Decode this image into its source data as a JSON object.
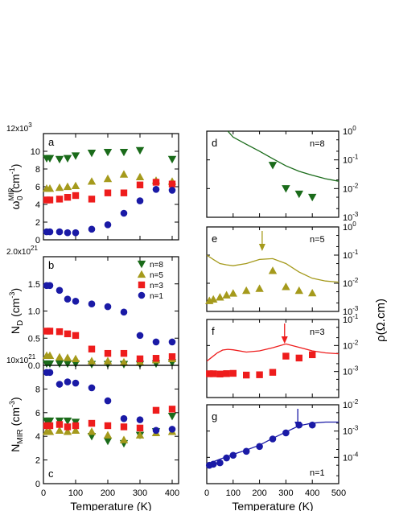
{
  "chart_data": [
    {
      "id": "a",
      "type": "scatter",
      "panel_label": "a",
      "ylabel_main": "ω",
      "ylabel_sub": "0",
      "ylabel_sup": "MIR",
      "ylabel_unit": " (cm",
      "ylabel_unit_sup": "-1",
      "ylabel_close": ")",
      "multiplier_base": "12x10",
      "multiplier_exp": "3",
      "xlim": [
        0,
        420
      ],
      "ylim": [
        0,
        12
      ],
      "yticks": [
        "0",
        "2",
        "4",
        "6",
        "8",
        "10"
      ],
      "ytick_values": [
        0,
        2,
        4,
        6,
        8,
        10
      ],
      "xticks": [
        0,
        100,
        200,
        300,
        400
      ],
      "series": [
        {
          "name": "n=8",
          "color": "#1a6b1a",
          "marker": "tri-down",
          "x": [
            10,
            20,
            50,
            75,
            100,
            150,
            200,
            250,
            300,
            400
          ],
          "y": [
            9.2,
            9.2,
            9.1,
            9.2,
            9.5,
            9.8,
            9.9,
            9.9,
            10.1,
            9.1
          ]
        },
        {
          "name": "n=5",
          "color": "#a59a1c",
          "marker": "tri-up",
          "x": [
            10,
            20,
            50,
            75,
            100,
            150,
            200,
            250,
            300,
            350,
            400
          ],
          "y": [
            5.8,
            5.8,
            5.9,
            6.0,
            6.1,
            6.6,
            6.9,
            7.4,
            7.1,
            6.7,
            6.6
          ]
        },
        {
          "name": "n=3",
          "color": "#ee1c1c",
          "marker": "square",
          "x": [
            10,
            20,
            50,
            75,
            100,
            150,
            200,
            250,
            300,
            350,
            400
          ],
          "y": [
            4.5,
            4.5,
            4.6,
            4.8,
            5.0,
            4.6,
            5.3,
            5.3,
            6.2,
            6.5,
            6.3
          ]
        },
        {
          "name": "n=1",
          "color": "#1a1aa6",
          "marker": "circle",
          "x": [
            10,
            20,
            50,
            75,
            100,
            150,
            200,
            250,
            300,
            350,
            400
          ],
          "y": [
            0.9,
            0.9,
            0.9,
            0.8,
            0.8,
            1.2,
            1.7,
            3.0,
            4.4,
            5.7,
            5.6
          ]
        }
      ]
    },
    {
      "id": "b",
      "type": "scatter",
      "panel_label": "b",
      "ylabel_main": "N",
      "ylabel_sub": "D",
      "ylabel_unit": " (cm",
      "ylabel_unit_sup": "-3",
      "ylabel_close": ")",
      "multiplier_base": "2.0x10",
      "multiplier_exp": "21",
      "xlim": [
        0,
        420
      ],
      "ylim": [
        0,
        2.0
      ],
      "yticks": [
        "0.0",
        "0.5",
        "1.0",
        "1.5"
      ],
      "ytick_values": [
        0,
        0.5,
        1.0,
        1.5
      ],
      "xticks": [
        0,
        100,
        200,
        300,
        400
      ],
      "legend": [
        "n=8",
        "n=5",
        "n=3",
        "n=1"
      ],
      "legend_position": "top-right",
      "series": [
        {
          "name": "n=8",
          "color": "#1a6b1a",
          "marker": "tri-down",
          "x": [
            10,
            20,
            50,
            75,
            100,
            150,
            200,
            250,
            300,
            350,
            400
          ],
          "y": [
            0.03,
            0.03,
            0.03,
            0.03,
            0.03,
            0.02,
            0.02,
            0.02,
            0.02,
            0.03,
            0.05
          ]
        },
        {
          "name": "n=5",
          "color": "#a59a1c",
          "marker": "tri-up",
          "x": [
            10,
            20,
            50,
            75,
            100,
            150,
            200,
            250,
            300,
            350,
            400
          ],
          "y": [
            0.18,
            0.18,
            0.15,
            0.14,
            0.12,
            0.08,
            0.08,
            0.06,
            0.06,
            0.1,
            0.12
          ]
        },
        {
          "name": "n=3",
          "color": "#ee1c1c",
          "marker": "square",
          "x": [
            10,
            20,
            50,
            75,
            100,
            150,
            200,
            250,
            300,
            350,
            400
          ],
          "y": [
            0.63,
            0.63,
            0.62,
            0.58,
            0.55,
            0.3,
            0.22,
            0.22,
            0.12,
            0.13,
            0.16
          ]
        },
        {
          "name": "n=1",
          "color": "#1a1aa6",
          "marker": "circle",
          "x": [
            10,
            20,
            50,
            75,
            100,
            150,
            200,
            250,
            300,
            350,
            400
          ],
          "y": [
            1.47,
            1.47,
            1.38,
            1.22,
            1.18,
            1.13,
            1.08,
            0.98,
            0.55,
            0.43,
            0.43
          ]
        }
      ]
    },
    {
      "id": "c",
      "type": "scatter",
      "panel_label": "c",
      "ylabel_main": "N",
      "ylabel_sub": "MIR",
      "ylabel_unit": " (cm",
      "ylabel_unit_sup": "-3",
      "ylabel_close": ")",
      "multiplier_base": "10x10",
      "multiplier_exp": "21",
      "xlim": [
        0,
        420
      ],
      "ylim": [
        0,
        10
      ],
      "yticks": [
        "0",
        "2",
        "4",
        "6",
        "8"
      ],
      "ytick_values": [
        0,
        2,
        4,
        6,
        8
      ],
      "xticks": [
        "0",
        "100",
        "200",
        "300",
        "400"
      ],
      "xtick_values": [
        0,
        100,
        200,
        300,
        400
      ],
      "xlabel": "Temperature (K)",
      "series": [
        {
          "name": "n=8",
          "color": "#1a6b1a",
          "marker": "tri-down",
          "x": [
            10,
            20,
            50,
            75,
            100,
            150,
            200,
            250,
            300,
            350,
            400
          ],
          "y": [
            5.3,
            5.3,
            5.3,
            5.3,
            5.2,
            4.0,
            3.6,
            3.4,
            4.1,
            4.4,
            5.7
          ]
        },
        {
          "name": "n=5",
          "color": "#a59a1c",
          "marker": "tri-up",
          "x": [
            10,
            20,
            50,
            75,
            100,
            150,
            200,
            250,
            300,
            350,
            400
          ],
          "y": [
            4.4,
            4.4,
            4.5,
            4.4,
            4.5,
            4.4,
            4.1,
            3.7,
            4.1,
            4.3,
            4.4
          ]
        },
        {
          "name": "n=3",
          "color": "#ee1c1c",
          "marker": "square",
          "x": [
            10,
            20,
            50,
            75,
            100,
            150,
            200,
            250,
            300,
            350,
            400
          ],
          "y": [
            4.9,
            4.9,
            5.0,
            4.8,
            4.9,
            5.1,
            4.9,
            4.8,
            4.7,
            6.2,
            6.3
          ]
        },
        {
          "name": "n=1",
          "color": "#1a1aa6",
          "marker": "circle",
          "x": [
            10,
            20,
            50,
            75,
            100,
            150,
            200,
            250,
            300,
            350,
            400
          ],
          "y": [
            9.4,
            9.4,
            8.4,
            8.6,
            8.5,
            8.1,
            7.0,
            5.5,
            5.4,
            4.5,
            4.6
          ]
        }
      ]
    },
    {
      "id": "d",
      "type": "line+scatter",
      "panel_label": "d",
      "n_label": "n=8",
      "color": "#1a6b1a",
      "xlim": [
        0,
        500
      ],
      "yscale": "log",
      "ylim": [
        0.001,
        1
      ],
      "ytick_exps": [
        "0",
        "-1",
        "-2",
        "-3"
      ],
      "ytick_values": [
        1,
        0.1,
        0.01,
        0.001
      ],
      "xticks": [
        0,
        100,
        200,
        300,
        400,
        500
      ],
      "line": {
        "x": [
          80,
          100,
          150,
          200,
          250,
          300,
          350,
          400,
          450,
          500
        ],
        "y": [
          1.0,
          0.62,
          0.35,
          0.2,
          0.11,
          0.062,
          0.04,
          0.029,
          0.022,
          0.018
        ]
      },
      "points": {
        "marker": "tri-down",
        "x": [
          250,
          300,
          350,
          400
        ],
        "y": [
          0.065,
          0.01,
          0.0065,
          0.005
        ]
      }
    },
    {
      "id": "e",
      "type": "line+scatter",
      "panel_label": "e",
      "n_label": "n=5",
      "color": "#a59a1c",
      "xlim": [
        0,
        500
      ],
      "yscale": "log",
      "ylim": [
        0.001,
        1
      ],
      "ytick_exps": [
        "0",
        "-1",
        "-2",
        "-3"
      ],
      "ytick_values": [
        1,
        0.1,
        0.01,
        0.001
      ],
      "xticks": [
        0,
        100,
        200,
        300,
        400,
        500
      ],
      "line": {
        "x": [
          0,
          25,
          50,
          75,
          100,
          150,
          200,
          250,
          300,
          350,
          400,
          450,
          500
        ],
        "y": [
          0.1,
          0.07,
          0.05,
          0.045,
          0.042,
          0.05,
          0.07,
          0.075,
          0.05,
          0.025,
          0.015,
          0.012,
          0.011
        ]
      },
      "points": {
        "marker": "tri-up",
        "x": [
          10,
          25,
          50,
          75,
          100,
          150,
          200,
          250,
          300,
          350,
          400
        ],
        "y": [
          0.0024,
          0.0027,
          0.0032,
          0.0038,
          0.0044,
          0.0055,
          0.0065,
          0.028,
          0.0075,
          0.0055,
          0.0045
        ]
      },
      "arrow_x": 210
    },
    {
      "id": "f",
      "type": "line+scatter",
      "panel_label": "f",
      "n_label": "n=3",
      "color": "#ee1c1c",
      "xlim": [
        0,
        500
      ],
      "yscale": "log",
      "ylim": [
        0.0001,
        0.1
      ],
      "ytick_exps": [
        "-1",
        "-2",
        "-3"
      ],
      "ytick_values": [
        0.1,
        0.01,
        0.001
      ],
      "xticks": [
        0,
        100,
        200,
        300,
        400,
        500
      ],
      "line": {
        "x": [
          0,
          20,
          40,
          60,
          80,
          100,
          150,
          200,
          250,
          300,
          350,
          400,
          450,
          500
        ],
        "y": [
          0.0025,
          0.0036,
          0.0052,
          0.0067,
          0.0071,
          0.0068,
          0.0056,
          0.0062,
          0.0082,
          0.0115,
          0.0085,
          0.0062,
          0.0052,
          0.0048
        ]
      },
      "points": {
        "marker": "square",
        "x": [
          10,
          25,
          50,
          75,
          100,
          150,
          200,
          250,
          300,
          350,
          400
        ],
        "y": [
          0.00082,
          0.00082,
          0.0008,
          0.00083,
          0.00085,
          0.00073,
          0.00075,
          0.00093,
          0.0039,
          0.0033,
          0.0044
        ]
      },
      "arrow_x": 295
    },
    {
      "id": "g",
      "type": "line+scatter",
      "panel_label": "g",
      "n_label": "n=1",
      "color": "#1a1aa6",
      "xlim": [
        0,
        500
      ],
      "yscale": "log",
      "ylim": [
        1e-05,
        0.01
      ],
      "ytick_exps": [
        "-2",
        "-3",
        "-4"
      ],
      "ytick_values": [
        0.01,
        0.001,
        0.0001
      ],
      "xticks": [
        "0",
        "100",
        "200",
        "300",
        "400",
        "500"
      ],
      "xtick_values": [
        0,
        100,
        200,
        300,
        400,
        500
      ],
      "xlabel": "Temperature (K)",
      "line": {
        "x": [
          0,
          50,
          100,
          150,
          200,
          250,
          300,
          350,
          400,
          450,
          500
        ],
        "y": [
          5.5e-05,
          8.5e-05,
          0.00013,
          0.00019,
          0.00029,
          0.00053,
          0.00092,
          0.0016,
          0.002,
          0.0022,
          0.0022
        ]
      },
      "points": {
        "marker": "circle",
        "x": [
          10,
          25,
          50,
          75,
          100,
          150,
          200,
          250,
          300,
          350,
          400
        ],
        "y": [
          5e-05,
          5.5e-05,
          6.2e-05,
          9.5e-05,
          0.00012,
          0.00017,
          0.00026,
          0.0005,
          0.00085,
          0.0017,
          0.0017
        ]
      },
      "arrow_x": 345
    }
  ],
  "right_axis_label": "ρ(Ω.cm)",
  "log_base": "10"
}
